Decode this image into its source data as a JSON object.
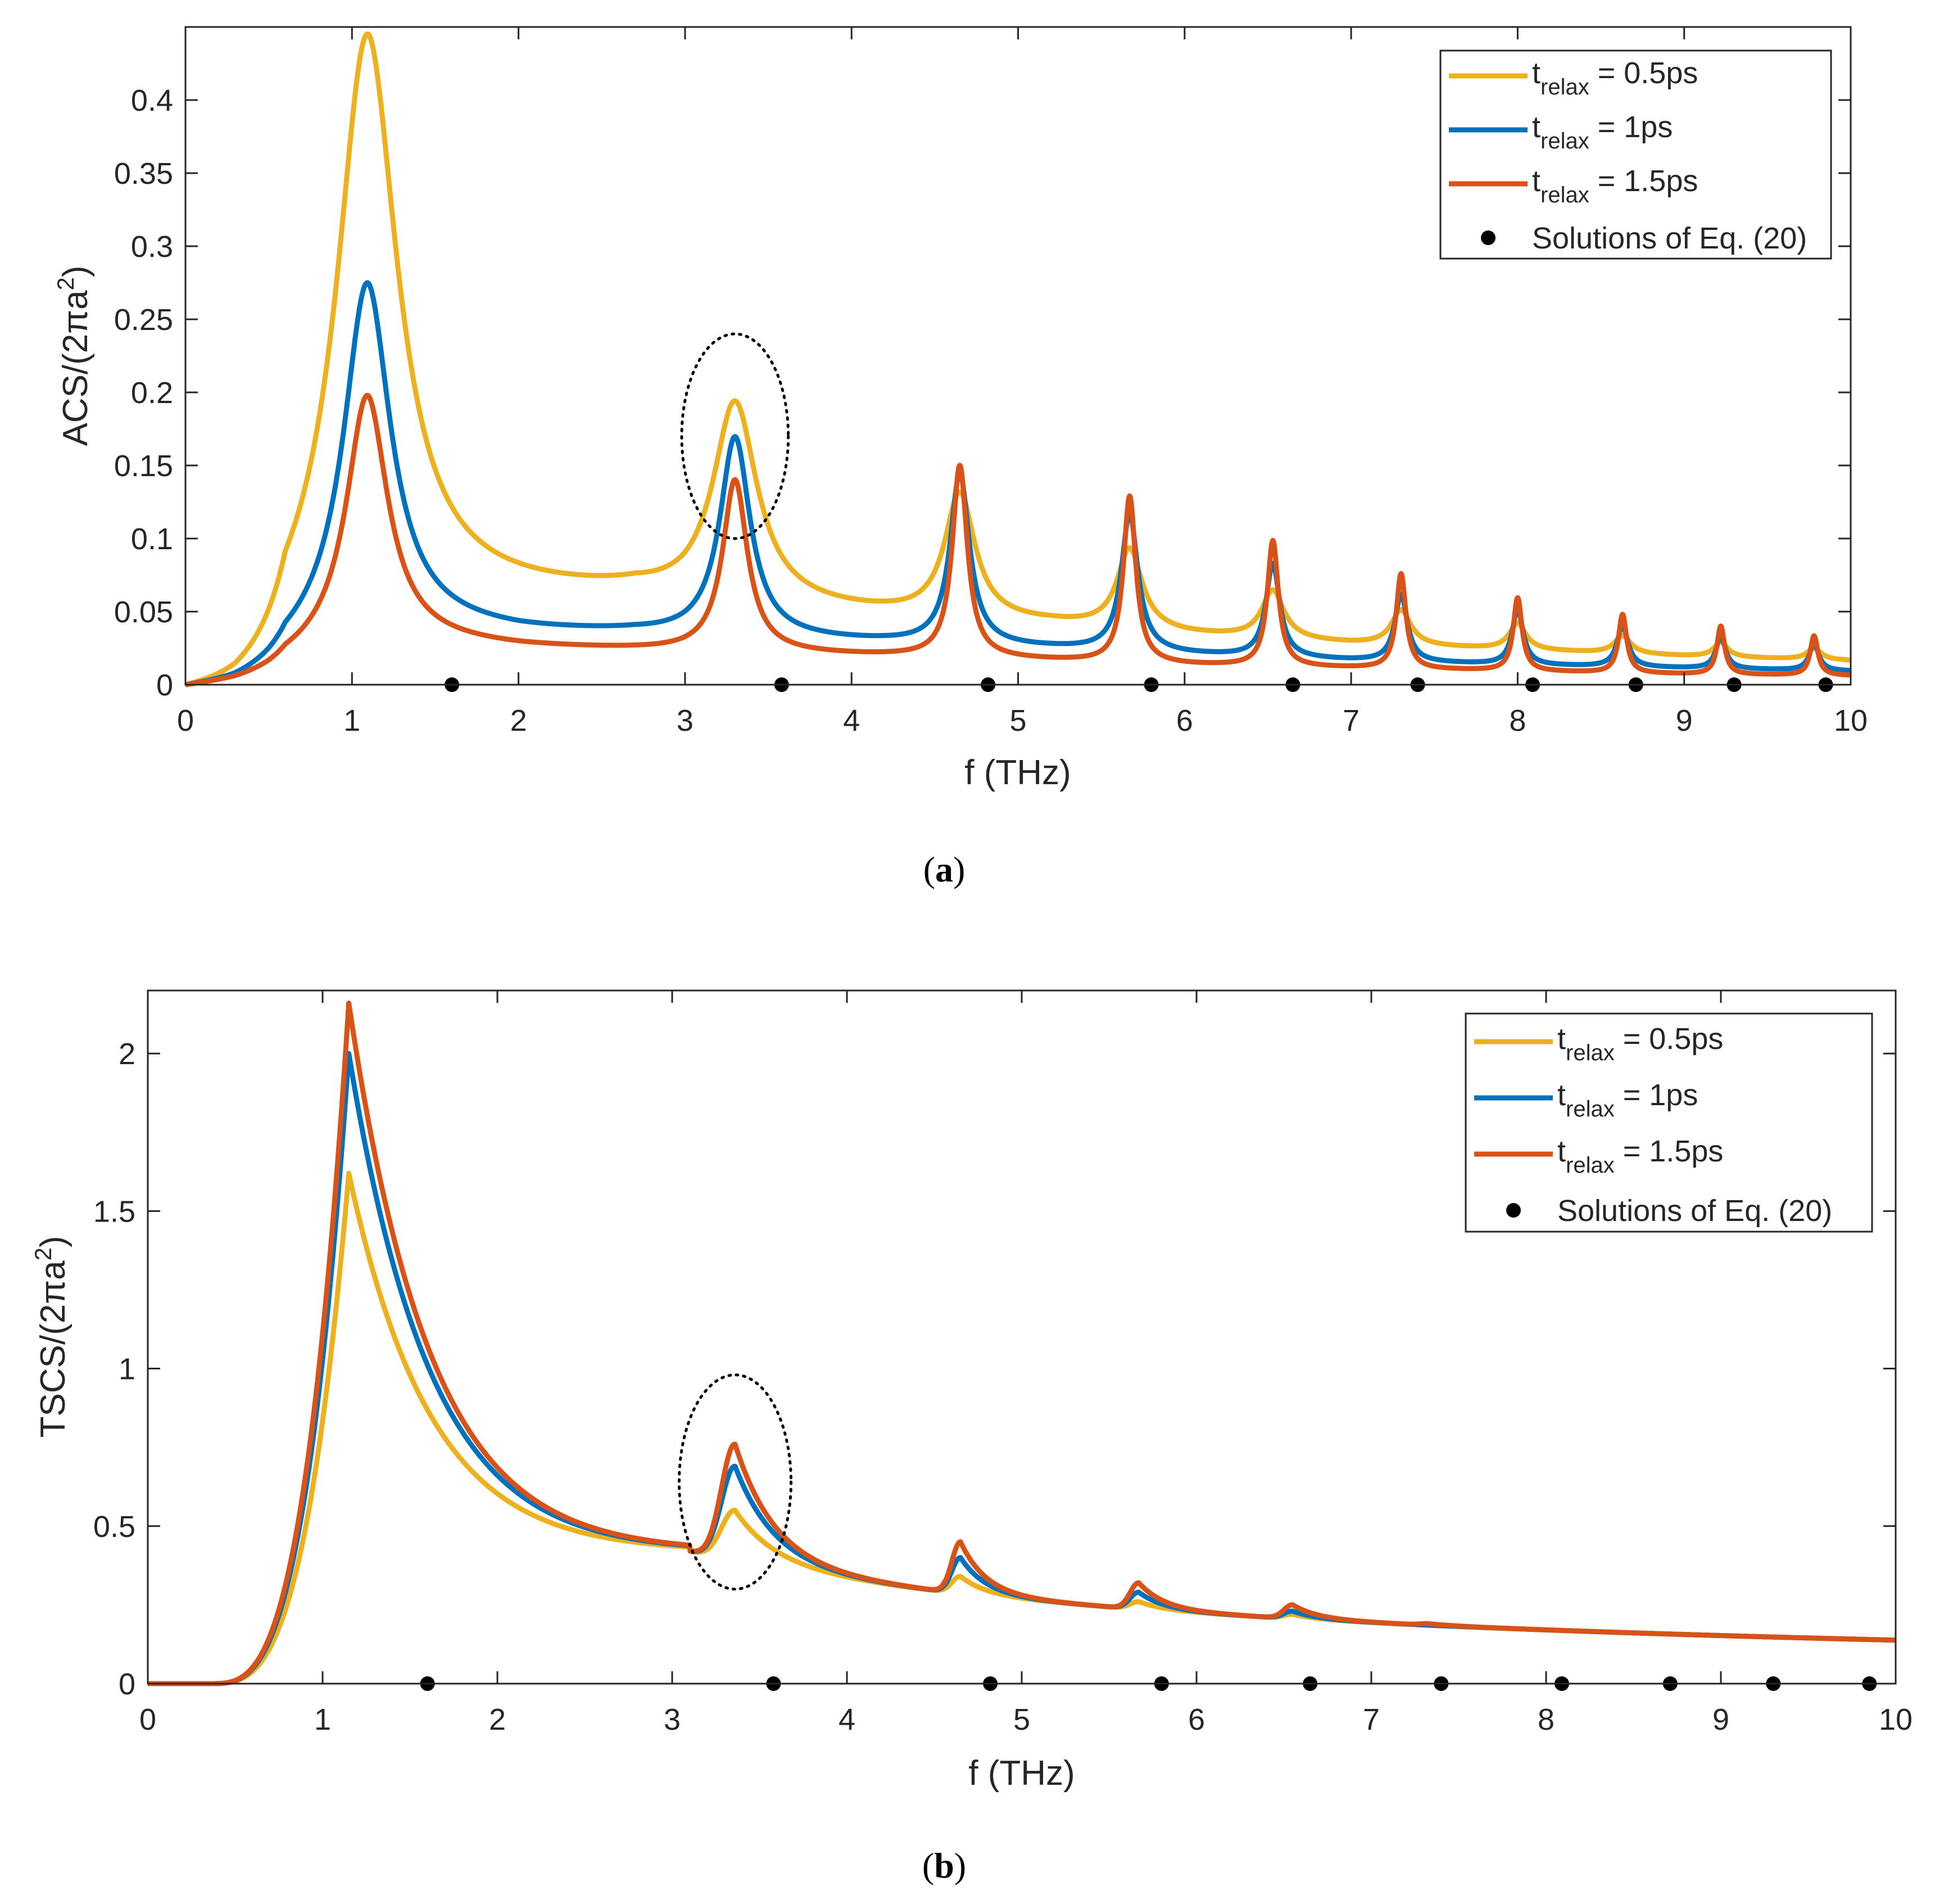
{
  "colors": {
    "series_0": "#EDB120",
    "series_1": "#0072BD",
    "series_2": "#D95319",
    "markers": "#000000"
  },
  "chart_data": [
    {
      "type": "line",
      "panel": "a",
      "caption_letter": "a",
      "xlabel": "f (THz)",
      "ylabel_main": "ACS/(2πa",
      "ylabel_sup": "2",
      "ylabel_close": ")",
      "xlim": [
        0,
        10
      ],
      "ylim": [
        0,
        0.45
      ],
      "xticks": [
        0,
        1,
        2,
        3,
        4,
        5,
        6,
        7,
        8,
        9,
        10
      ],
      "xtick_labels": [
        "0",
        "1",
        "2",
        "3",
        "4",
        "5",
        "6",
        "7",
        "8",
        "9",
        "10"
      ],
      "yticks": [
        0,
        0.05,
        0.1,
        0.15,
        0.2,
        0.25,
        0.3,
        0.35,
        0.4
      ],
      "ytick_labels": [
        "0",
        "0.05",
        "0.1",
        "0.15",
        "0.2",
        "0.25",
        "0.3",
        "0.35",
        "0.4"
      ],
      "legend_location": "top-right",
      "series": [
        {
          "name": "t_relax = 0.5ps",
          "legend_base": "t",
          "legend_sub": "relax",
          "legend_rest": " = 0.5ps",
          "tau_ps": 0.5,
          "baseline": [
            [
              0,
              0
            ],
            [
              0.3,
              0.009
            ],
            [
              0.5,
              0.02
            ],
            [
              1.1,
              0.06
            ],
            [
              2,
              0.06
            ],
            [
              2.7,
              0.06
            ],
            [
              3,
              0.055
            ],
            [
              4.2,
              0.046
            ],
            [
              4.65,
              0.042
            ],
            [
              5.2,
              0.04
            ],
            [
              6,
              0.033
            ],
            [
              7,
              0.027
            ],
            [
              8,
              0.023
            ],
            [
              9,
              0.019
            ],
            [
              10,
              0.016
            ]
          ],
          "peaks": [
            {
              "f": 1.09,
              "h": 0.385,
              "w": 0.22
            },
            {
              "f": 3.3,
              "h": 0.137,
              "w": 0.16
            },
            {
              "f": 4.65,
              "h": 0.086,
              "w": 0.11
            },
            {
              "f": 5.67,
              "h": 0.055,
              "w": 0.09
            },
            {
              "f": 6.53,
              "h": 0.033,
              "w": 0.08
            },
            {
              "f": 7.3,
              "h": 0.024,
              "w": 0.07
            },
            {
              "f": 8.0,
              "h": 0.018,
              "w": 0.06
            },
            {
              "f": 8.63,
              "h": 0.012,
              "w": 0.06
            },
            {
              "f": 9.22,
              "h": 0.01,
              "w": 0.05
            },
            {
              "f": 9.78,
              "h": 0.008,
              "w": 0.05
            }
          ]
        },
        {
          "name": "t_relax = 1ps",
          "legend_base": "t",
          "legend_sub": "relax",
          "legend_rest": " = 1ps",
          "tau_ps": 1.0,
          "baseline": [
            [
              0,
              0
            ],
            [
              0.3,
              0.006
            ],
            [
              0.5,
              0.013
            ],
            [
              1.1,
              0.04
            ],
            [
              2,
              0.035
            ],
            [
              2.7,
              0.034
            ],
            [
              3,
              0.032
            ],
            [
              4.2,
              0.028
            ],
            [
              4.65,
              0.026
            ],
            [
              5.2,
              0.024
            ],
            [
              6,
              0.02
            ],
            [
              7,
              0.016
            ],
            [
              8,
              0.013
            ],
            [
              9,
              0.011
            ],
            [
              10,
              0.009
            ]
          ],
          "peaks": [
            {
              "f": 1.09,
              "h": 0.235,
              "w": 0.17
            },
            {
              "f": 3.3,
              "h": 0.137,
              "w": 0.11
            },
            {
              "f": 4.65,
              "h": 0.117,
              "w": 0.07
            },
            {
              "f": 5.67,
              "h": 0.094,
              "w": 0.06
            },
            {
              "f": 6.53,
              "h": 0.064,
              "w": 0.05
            },
            {
              "f": 7.3,
              "h": 0.046,
              "w": 0.045
            },
            {
              "f": 8.0,
              "h": 0.038,
              "w": 0.04
            },
            {
              "f": 8.63,
              "h": 0.028,
              "w": 0.04
            },
            {
              "f": 9.22,
              "h": 0.022,
              "w": 0.035
            },
            {
              "f": 9.78,
              "h": 0.018,
              "w": 0.035
            }
          ]
        },
        {
          "name": "t_relax = 1.5ps",
          "legend_base": "t",
          "legend_sub": "relax",
          "legend_rest": " = 1.5ps",
          "tau_ps": 1.5,
          "baseline": [
            [
              0,
              0
            ],
            [
              0.3,
              0.005
            ],
            [
              0.5,
              0.01
            ],
            [
              1.1,
              0.03
            ],
            [
              2,
              0.025
            ],
            [
              2.7,
              0.023
            ],
            [
              3,
              0.022
            ],
            [
              4.2,
              0.019
            ],
            [
              4.65,
              0.018
            ],
            [
              5.2,
              0.016
            ],
            [
              6,
              0.013
            ],
            [
              7,
              0.011
            ],
            [
              8,
              0.009
            ],
            [
              9,
              0.007
            ],
            [
              10,
              0.006
            ]
          ],
          "peaks": [
            {
              "f": 1.09,
              "h": 0.168,
              "w": 0.15
            },
            {
              "f": 3.3,
              "h": 0.118,
              "w": 0.09
            },
            {
              "f": 4.65,
              "h": 0.131,
              "w": 0.055
            },
            {
              "f": 5.67,
              "h": 0.114,
              "w": 0.045
            },
            {
              "f": 6.53,
              "h": 0.086,
              "w": 0.04
            },
            {
              "f": 7.3,
              "h": 0.065,
              "w": 0.035
            },
            {
              "f": 8.0,
              "h": 0.05,
              "w": 0.032
            },
            {
              "f": 8.63,
              "h": 0.04,
              "w": 0.03
            },
            {
              "f": 9.22,
              "h": 0.033,
              "w": 0.028
            },
            {
              "f": 9.78,
              "h": 0.027,
              "w": 0.028
            }
          ]
        }
      ],
      "markers": {
        "name": "Solutions of Eq. (20)",
        "x": [
          1.6,
          3.58,
          4.82,
          5.8,
          6.65,
          7.4,
          8.09,
          8.71,
          9.3,
          9.85
        ],
        "y": 0
      },
      "annotation": {
        "shape": "dotted-ellipse",
        "center_f": 3.3,
        "center_y": 0.17,
        "semi_x_f": 0.32,
        "semi_y": 0.07
      }
    },
    {
      "type": "line",
      "panel": "b",
      "caption_letter": "b",
      "xlabel": "f (THz)",
      "ylabel_main": "TSCS/(2πa",
      "ylabel_sup": "2",
      "ylabel_close": ")",
      "xlim": [
        0,
        10
      ],
      "ylim": [
        0,
        2.2
      ],
      "xticks": [
        0,
        1,
        2,
        3,
        4,
        5,
        6,
        7,
        8,
        9,
        10
      ],
      "xtick_labels": [
        "0",
        "1",
        "2",
        "3",
        "4",
        "5",
        "6",
        "7",
        "8",
        "9",
        "10"
      ],
      "yticks": [
        0,
        0.5,
        1,
        1.5,
        2
      ],
      "ytick_labels": [
        "0",
        "0.5",
        "1",
        "1.5",
        "2"
      ],
      "legend_location": "top-right",
      "series": [
        {
          "name": "t_relax = 0.5ps",
          "legend_base": "t",
          "legend_sub": "relax",
          "legend_rest": " = 0.5ps",
          "tau_ps": 0.5,
          "peak_height": 1.62,
          "points": [
            [
              3.36,
              0.55
            ],
            [
              4.65,
              0.34
            ],
            [
              5.67,
              0.26
            ],
            [
              6.55,
              0.22
            ],
            [
              7.33,
              0.18
            ],
            [
              8.0,
              0.15
            ],
            [
              8.63,
              0.14
            ],
            [
              9.25,
              0.12
            ],
            [
              9.82,
              0.11
            ]
          ]
        },
        {
          "name": "t_relax = 1ps",
          "legend_base": "t",
          "legend_sub": "relax",
          "legend_rest": " = 1ps",
          "tau_ps": 1.0,
          "peak_height": 2.0,
          "points": [
            [
              3.36,
              0.69
            ],
            [
              4.65,
              0.4
            ],
            [
              5.67,
              0.29
            ],
            [
              6.55,
              0.23
            ],
            [
              7.33,
              0.18
            ],
            [
              8.0,
              0.155
            ],
            [
              8.63,
              0.135
            ],
            [
              9.25,
              0.12
            ],
            [
              9.82,
              0.11
            ]
          ]
        },
        {
          "name": "t_relax = 1.5ps",
          "legend_base": "t",
          "legend_sub": "relax",
          "legend_rest": " = 1.5ps",
          "tau_ps": 1.5,
          "peak_height": 2.16,
          "points": [
            [
              3.36,
              0.76
            ],
            [
              4.65,
              0.45
            ],
            [
              5.67,
              0.32
            ],
            [
              6.55,
              0.25
            ],
            [
              7.33,
              0.19
            ],
            [
              8.0,
              0.16
            ],
            [
              8.63,
              0.14
            ],
            [
              9.25,
              0.125
            ],
            [
              9.82,
              0.11
            ]
          ]
        }
      ],
      "markers": {
        "name": "Solutions of Eq. (20)",
        "x": [
          1.6,
          3.58,
          4.82,
          5.8,
          6.65,
          7.4,
          8.09,
          8.71,
          9.3,
          9.85
        ],
        "y": 0
      },
      "annotation": {
        "shape": "dotted-ellipse",
        "center_f": 3.36,
        "center_y": 0.64,
        "semi_x_f": 0.32,
        "semi_y": 0.34
      }
    }
  ]
}
